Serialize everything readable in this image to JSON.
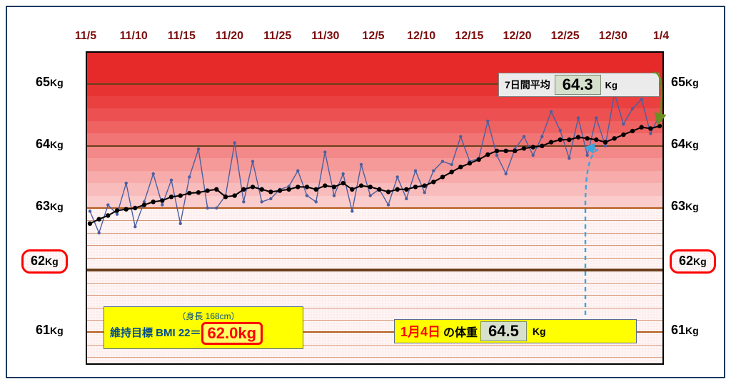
{
  "chart": {
    "type": "line",
    "y_unit": "Kg",
    "ylim_min": 60.5,
    "ylim_max": 65.5,
    "x_ticks": [
      "11/5",
      "11/10",
      "11/15",
      "11/20",
      "11/25",
      "11/30",
      "12/5",
      "12/10",
      "12/15",
      "12/20",
      "12/25",
      "12/30",
      "1/4"
    ],
    "x_tick_color": "#7b0b0b",
    "x_tick_fontsize": 16,
    "y_ticks": [
      61,
      62,
      63,
      64,
      65
    ],
    "y_tick_fontsize": 18,
    "target_value": 62,
    "target_label": "62",
    "background_color": "#ffffff",
    "frame_color": "#1f3864",
    "plot_border_color": "#000000",
    "bands": [
      {
        "from": 65.5,
        "to": 65.0,
        "fill": "#e62a2a"
      },
      {
        "from": 65.0,
        "to": 64.8,
        "fill": "#e83333"
      },
      {
        "from": 64.8,
        "to": 64.6,
        "fill": "#ea4040"
      },
      {
        "from": 64.6,
        "to": 64.4,
        "fill": "#ec5050"
      },
      {
        "from": 64.4,
        "to": 64.2,
        "fill": "#ef6262"
      },
      {
        "from": 64.2,
        "to": 64.0,
        "fill": "#f17575"
      },
      {
        "from": 64.0,
        "to": 63.8,
        "fill": "#f38888"
      },
      {
        "from": 63.8,
        "to": 63.6,
        "fill": "#f59999"
      },
      {
        "from": 63.6,
        "to": 63.4,
        "fill": "#f7abab"
      },
      {
        "from": 63.4,
        "to": 63.2,
        "fill": "#f9bcbc"
      },
      {
        "from": 63.2,
        "to": 63.0,
        "fill": "#fbcccc"
      }
    ],
    "bottom_region": {
      "from": 63.0,
      "to": 60.5,
      "fill": "#fff4f4",
      "dot_color": "#efcccc"
    },
    "gridlines": [
      {
        "at": 65.0,
        "color": "#6b3f1a",
        "width": 2
      },
      {
        "at": 64.0,
        "color": "#6b3f1a",
        "width": 2
      },
      {
        "at": 63.0,
        "color": "#b45a1a",
        "width": 2
      },
      {
        "at": 62.0,
        "color": "#6b3f1a",
        "width": 4
      },
      {
        "at": 61.0,
        "color": "#b45a1a",
        "width": 2
      }
    ],
    "minor_gridlines": {
      "from": 63.0,
      "to": 60.5,
      "step": 0.2,
      "color": "#d99a7a",
      "width": 1
    },
    "daily": {
      "color": "#4a5fa0",
      "width": 1.4,
      "marker_size": 2.2,
      "values": [
        62.95,
        62.6,
        63.05,
        62.9,
        63.4,
        62.7,
        63.1,
        63.55,
        63.05,
        63.45,
        62.75,
        63.5,
        63.95,
        63.0,
        63.0,
        63.2,
        64.05,
        63.1,
        63.75,
        63.1,
        63.15,
        63.3,
        63.35,
        63.6,
        63.2,
        63.1,
        63.9,
        63.2,
        63.55,
        62.95,
        63.7,
        63.2,
        63.3,
        63.05,
        63.5,
        63.15,
        63.6,
        63.25,
        63.6,
        63.75,
        63.7,
        64.15,
        63.75,
        63.8,
        64.4,
        63.85,
        63.55,
        63.95,
        64.15,
        63.85,
        64.15,
        64.55,
        64.25,
        63.8,
        64.45,
        63.85,
        64.45,
        64.0,
        64.85,
        64.35,
        64.6,
        64.75,
        64.2,
        64.5
      ]
    },
    "avg7": {
      "color": "#000000",
      "dot_color": "#000000",
      "width": 2,
      "dot_size": 3.2,
      "values": [
        62.75,
        62.82,
        62.88,
        62.96,
        62.98,
        63.0,
        63.05,
        63.1,
        63.12,
        63.18,
        63.2,
        63.24,
        63.25,
        63.28,
        63.3,
        63.18,
        63.2,
        63.3,
        63.34,
        63.3,
        63.26,
        63.28,
        63.3,
        63.34,
        63.34,
        63.3,
        63.36,
        63.34,
        63.4,
        63.3,
        63.36,
        63.34,
        63.3,
        63.26,
        63.3,
        63.3,
        63.34,
        63.36,
        63.42,
        63.5,
        63.58,
        63.66,
        63.72,
        63.78,
        63.86,
        63.92,
        63.92,
        63.92,
        63.96,
        63.98,
        64.0,
        64.06,
        64.1,
        64.1,
        64.14,
        64.12,
        64.1,
        64.06,
        64.12,
        64.18,
        64.24,
        64.3,
        64.28,
        64.32
      ]
    },
    "callout_arrow": {
      "from_x_index": 55,
      "from_y": 63.95,
      "color": "#3aa7e0",
      "dash": "6,5",
      "width": 2.5
    },
    "avg_arrow_color": "#6b8e23"
  },
  "labels": {
    "avg_box_label": "7日間平均",
    "avg_box_value": "64.3",
    "avg_box_unit": "Kg",
    "bmi_line1": "（身長  168cm）",
    "bmi_line2_prefix": "維持目標 BMI 22＝",
    "bmi_value": "62.0kg",
    "weight_date": "1月4日",
    "weight_label": "の体重",
    "weight_value": "64.5",
    "weight_unit": "Kg",
    "target_badge": "62",
    "kg_suffix": "Kg"
  }
}
